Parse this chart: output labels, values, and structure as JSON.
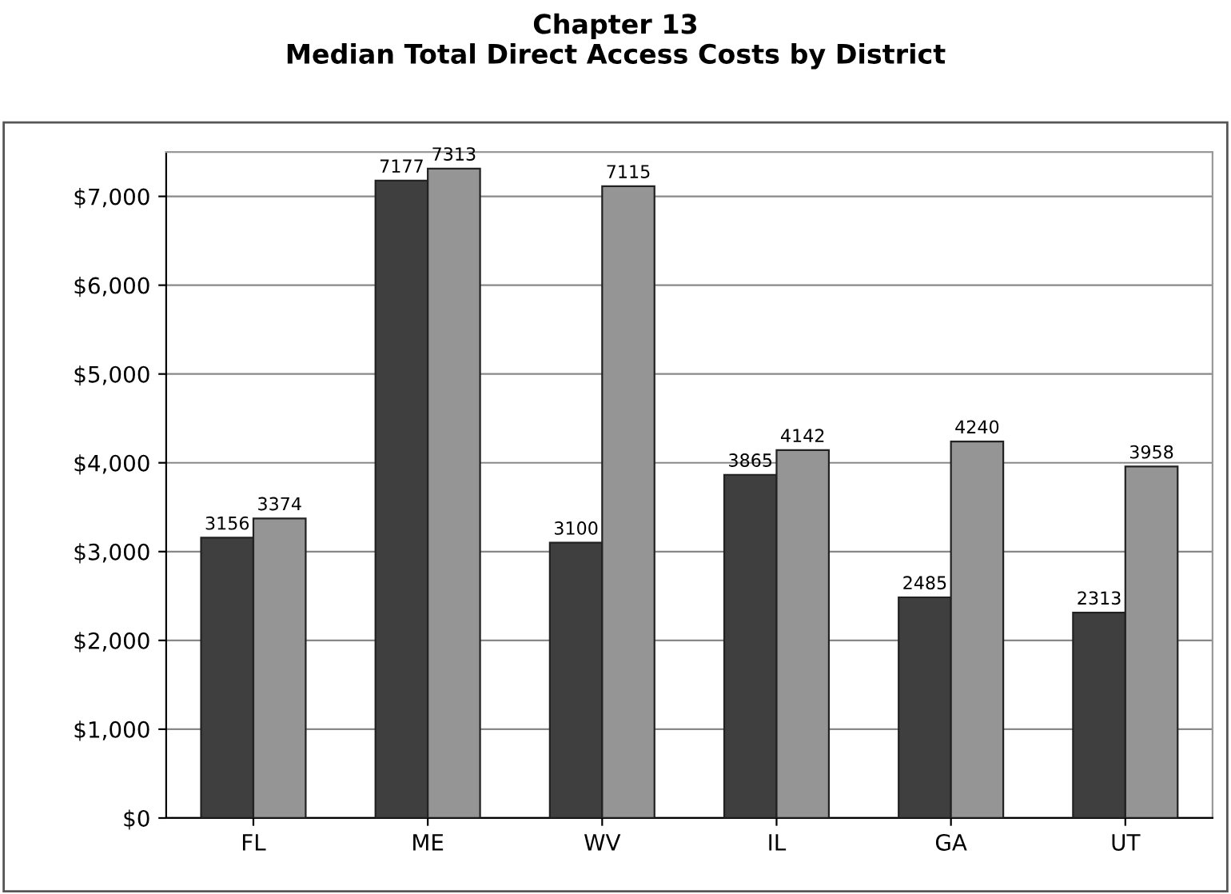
{
  "chart_data": {
    "type": "bar",
    "title": "Chapter 13\nMedian Total Direct Access Costs by District",
    "categories": [
      "FL",
      "ME",
      "WV",
      "IL",
      "GA",
      "UT"
    ],
    "series": [
      {
        "color": "#3f3f3f",
        "values": [
          3156,
          7177,
          3100,
          3865,
          2485,
          2313
        ]
      },
      {
        "color": "#959595",
        "values": [
          3374,
          7313,
          7115,
          4142,
          4240,
          3958
        ]
      }
    ],
    "ylim": [
      0,
      7500
    ],
    "yticks": [
      {
        "value": 0,
        "label": "$0"
      },
      {
        "value": 1000,
        "label": "$1,000"
      },
      {
        "value": 2000,
        "label": "$2,000"
      },
      {
        "value": 3000,
        "label": "$3,000"
      },
      {
        "value": 4000,
        "label": "$4,000"
      },
      {
        "value": 5000,
        "label": "$5,000"
      },
      {
        "value": 6000,
        "label": "$6,000"
      },
      {
        "value": 7000,
        "label": "$7,000"
      }
    ],
    "grid": "y",
    "data_labels": true
  }
}
